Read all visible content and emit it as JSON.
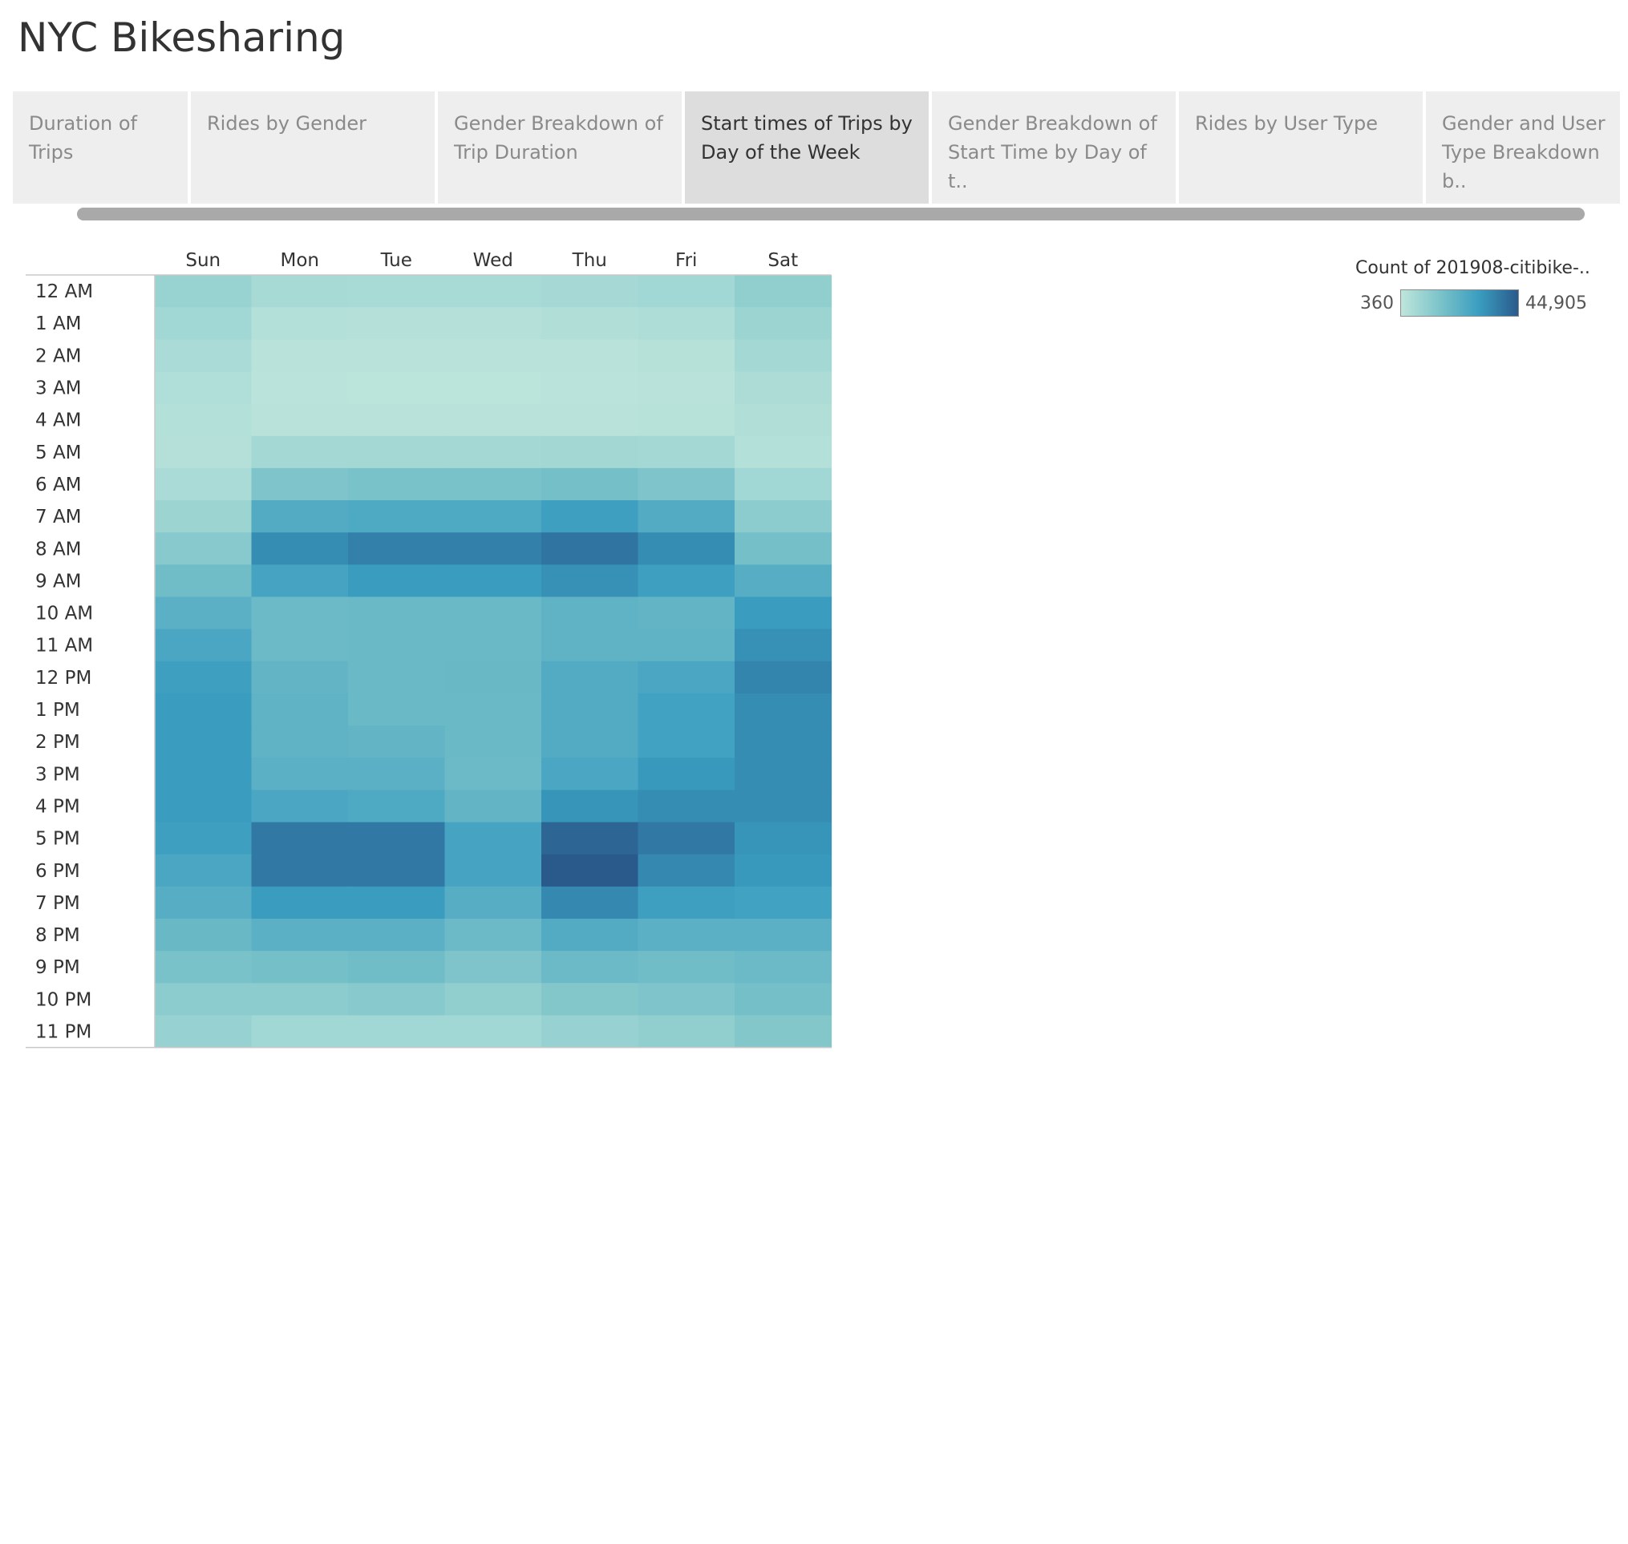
{
  "title": "NYC Bikesharing",
  "tabs": [
    {
      "label": "Duration of Trips",
      "active": false
    },
    {
      "label": "Rides by Gender",
      "active": false
    },
    {
      "label": "Gender Breakdown of Trip Duration",
      "active": false
    },
    {
      "label": "Start times of Trips by Day of the Week",
      "active": true
    },
    {
      "label": "Gender Breakdown of Start Time by Day of t..",
      "active": false
    },
    {
      "label": "Rides by User Type",
      "active": false
    },
    {
      "label": "Gender and User Type Breakdown b..",
      "active": false
    }
  ],
  "legend": {
    "title": "Count of 201908-citibike-..",
    "min_label": "360",
    "max_label": "44,905",
    "colors": [
      "#bfe6dc",
      "#7bc3c9",
      "#3a9dc0",
      "#2a5a8c"
    ]
  },
  "chart_data": {
    "type": "heatmap",
    "x_categories": [
      "Sun",
      "Mon",
      "Tue",
      "Wed",
      "Thu",
      "Fri",
      "Sat"
    ],
    "y_categories": [
      "12 AM",
      "1 AM",
      "2 AM",
      "3 AM",
      "4 AM",
      "5 AM",
      "6 AM",
      "7 AM",
      "8 AM",
      "9 AM",
      "10 AM",
      "11 AM",
      "12 PM",
      "1 PM",
      "2 PM",
      "3 PM",
      "4 PM",
      "5 PM",
      "6 PM",
      "7 PM",
      "8 PM",
      "9 PM",
      "10 PM",
      "11 PM"
    ],
    "value_range": [
      360,
      44905
    ],
    "values": [
      [
        6500,
        4000,
        3800,
        3800,
        4200,
        5000,
        8000
      ],
      [
        5000,
        2000,
        1800,
        1800,
        2200,
        2800,
        6000
      ],
      [
        3500,
        1200,
        1000,
        1000,
        1200,
        1600,
        4500
      ],
      [
        2500,
        900,
        800,
        800,
        900,
        1200,
        3000
      ],
      [
        2000,
        1000,
        1000,
        1000,
        1100,
        1300,
        2200
      ],
      [
        1800,
        4500,
        4500,
        4500,
        4800,
        4500,
        2000
      ],
      [
        3500,
        12000,
        13000,
        13000,
        14000,
        12000,
        5000
      ],
      [
        6000,
        22000,
        23000,
        23000,
        27000,
        22000,
        9000
      ],
      [
        10000,
        32000,
        35000,
        35000,
        38000,
        32000,
        14000
      ],
      [
        15000,
        25000,
        28000,
        28000,
        31000,
        27000,
        21000
      ],
      [
        20000,
        16000,
        16500,
        16500,
        19000,
        18000,
        28000
      ],
      [
        24000,
        16000,
        16500,
        16500,
        19000,
        19000,
        31000
      ],
      [
        27000,
        18000,
        16500,
        17000,
        22000,
        24000,
        34000
      ],
      [
        28000,
        19000,
        16500,
        16500,
        22000,
        26000,
        32000
      ],
      [
        28000,
        19000,
        18000,
        16500,
        22000,
        26000,
        32000
      ],
      [
        28000,
        20000,
        20000,
        16000,
        24000,
        29000,
        32000
      ],
      [
        28000,
        24000,
        23000,
        18000,
        30000,
        32000,
        32000
      ],
      [
        27000,
        37000,
        37000,
        25000,
        42000,
        37000,
        30000
      ],
      [
        24000,
        37000,
        37000,
        25000,
        44905,
        33000,
        29000
      ],
      [
        21000,
        28000,
        28000,
        21000,
        33000,
        27000,
        26000
      ],
      [
        17000,
        20000,
        20000,
        16000,
        22000,
        20000,
        20000
      ],
      [
        13000,
        14000,
        15000,
        12000,
        16000,
        15000,
        16000
      ],
      [
        9000,
        9000,
        10000,
        8000,
        11000,
        12000,
        14000
      ],
      [
        7000,
        5000,
        5000,
        5000,
        7000,
        8000,
        11000
      ]
    ]
  }
}
